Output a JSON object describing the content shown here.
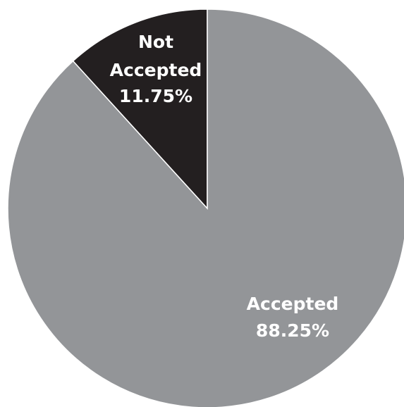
{
  "chart_data": {
    "type": "pie",
    "title": "",
    "slices": [
      {
        "label": "Not Accepted",
        "value": 11.75,
        "value_label": "11.75%",
        "color": "#231f20"
      },
      {
        "label": "Accepted",
        "value": 88.25,
        "value_label": "88.25%",
        "color": "#939598"
      }
    ],
    "start_angle_deg": 0,
    "direction": "counterclockwise",
    "slice_border_color": "#ffffff",
    "legend": "none"
  }
}
